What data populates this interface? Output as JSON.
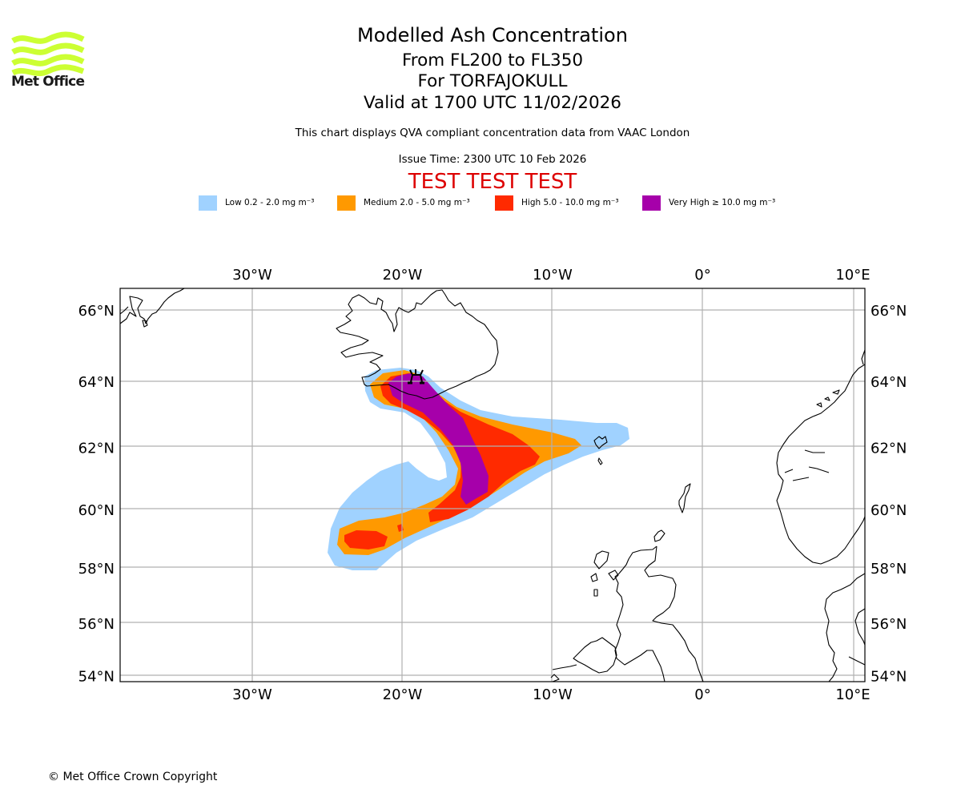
{
  "header": {
    "logo_text": "Met Office",
    "logo_color": "#ccff33",
    "title": "Modelled Ash Concentration",
    "level_range": "From FL200 to FL350",
    "volcano": "For TORFAJOKULL",
    "valid_time": "Valid at 1700 UTC 11/02/2026",
    "description": "This chart displays QVA compliant concentration data from VAAC London",
    "issue_time": "Issue Time: 2300 UTC 10 Feb 2026",
    "test_banner": "TEST TEST TEST",
    "test_banner_color": "#dd0000"
  },
  "legend": [
    {
      "label": "Low 0.2 - 2.0 mg m⁻³",
      "color": "#a0d2ff"
    },
    {
      "label": "Medium 2.0 - 5.0 mg m⁻³",
      "color": "#ff9900"
    },
    {
      "label": "High 5.0 - 10.0 mg m⁻³",
      "color": "#ff2a00"
    },
    {
      "label": "Very High ≥ 10.0 mg m⁻³",
      "color": "#a600aa"
    }
  ],
  "footer": {
    "copyright": "© Met Office Crown Copyright"
  },
  "chart_data": {
    "type": "heatmap",
    "title": "Modelled Ash Concentration",
    "projection": "mercator",
    "xlabel": "Longitude",
    "ylabel": "Latitude",
    "xlim": [
      -38.8,
      10.8
    ],
    "ylim": [
      53.8,
      66.6
    ],
    "grid": true,
    "x_ticks": [
      {
        "value": -30,
        "label": "30°W"
      },
      {
        "value": -20,
        "label": "20°W"
      },
      {
        "value": -10,
        "label": "10°W"
      },
      {
        "value": 0,
        "label": "0°"
      },
      {
        "value": 10,
        "label": "10°E"
      }
    ],
    "y_ticks": [
      {
        "value": 66,
        "label": "66°N"
      },
      {
        "value": 64,
        "label": "64°N"
      },
      {
        "value": 62,
        "label": "62°N"
      },
      {
        "value": 60,
        "label": "60°N"
      },
      {
        "value": 58,
        "label": "58°N"
      },
      {
        "value": 56,
        "label": "56°N"
      },
      {
        "value": 54,
        "label": "54°N"
      }
    ],
    "volcano": {
      "name": "TORFAJOKULL",
      "lon": -19.1,
      "lat": 63.9
    },
    "concentration_levels": [
      {
        "level": "Low",
        "min": 0.2,
        "max": 2.0,
        "units": "mg m-3"
      },
      {
        "level": "Medium",
        "min": 2.0,
        "max": 5.0,
        "units": "mg m-3"
      },
      {
        "level": "High",
        "min": 5.0,
        "max": 10.0,
        "units": "mg m-3"
      },
      {
        "level": "Very High",
        "min": 10.0,
        "max": null,
        "units": "mg m-3"
      }
    ],
    "plume_extent": {
      "Low": {
        "lon_range": [
          -25.5,
          -4.5
        ],
        "lat_range": [
          57.9,
          64.3
        ]
      },
      "Medium": {
        "lon_range": [
          -24.2,
          -8.2
        ],
        "lat_range": [
          58.4,
          64.1
        ]
      },
      "High": {
        "lon_range": [
          -23.0,
          -10.9
        ],
        "lat_range": [
          58.7,
          64.0
        ]
      },
      "Very High": {
        "lon_range": [
          -20.7,
          -14.4
        ],
        "lat_range": [
          60.1,
          64.0
        ]
      }
    }
  }
}
